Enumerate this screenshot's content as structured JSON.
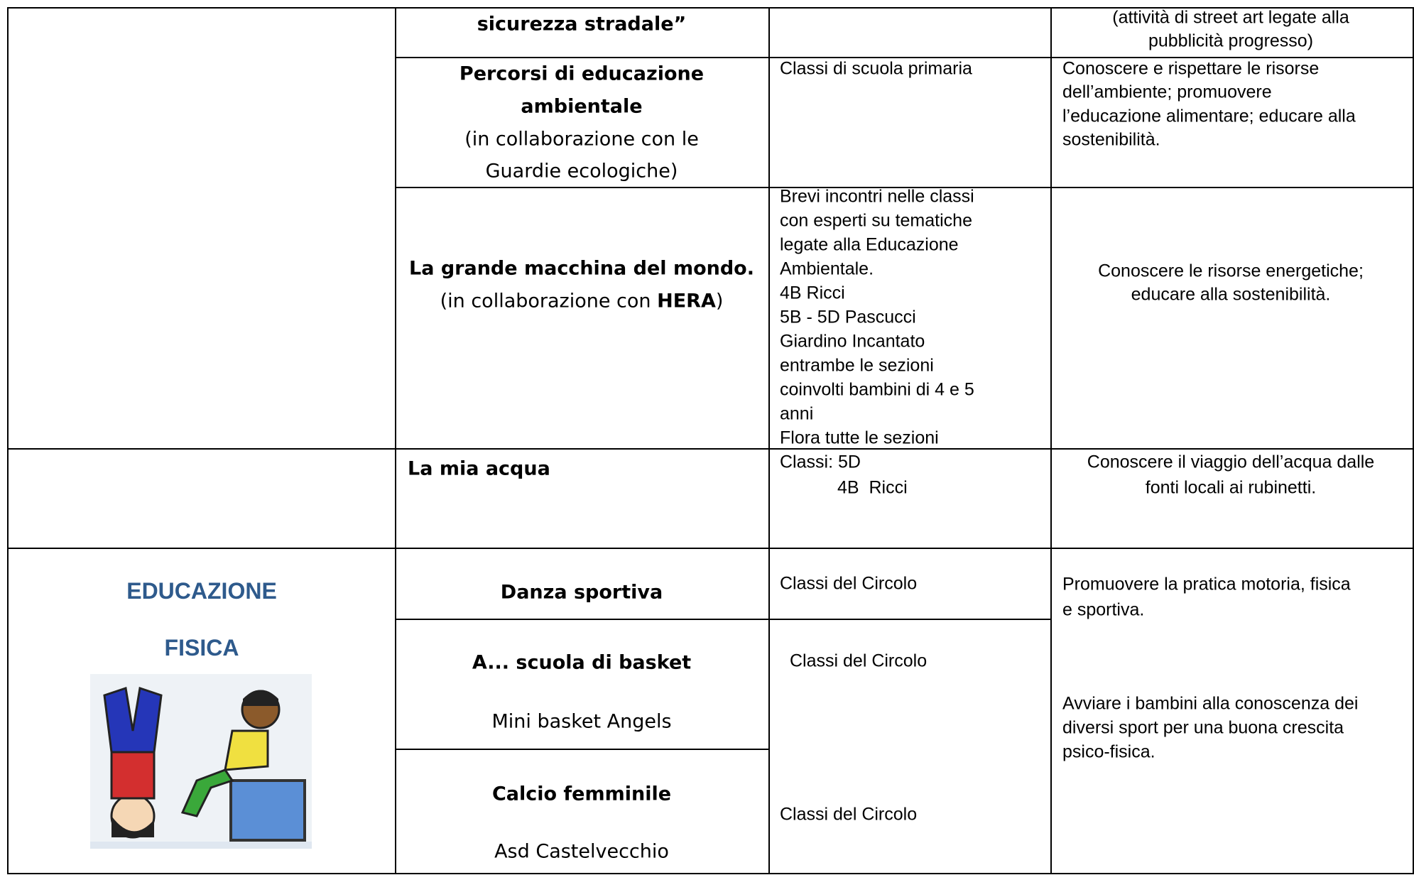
{
  "table": {
    "rows": [
      {
        "project": [
          "sicurezza stradale”"
        ],
        "classes": [],
        "goals": [
          "(attività di street art legate alla",
          "pubblicità progresso)"
        ]
      },
      {
        "project": [
          "Percorsi di educazione",
          "ambientale",
          "(in collaborazione con le",
          "Guardie ecologiche)"
        ],
        "classes": [
          "Classi di scuola primaria"
        ],
        "goals": [
          "Conoscere e rispettare le risorse",
          "dell’ambiente; promuovere",
          "l’educazione alimentare; educare alla",
          "sostenibilità."
        ]
      },
      {
        "project": [
          "La grande macchina del mondo.",
          "(in collaborazione con ",
          "HERA",
          ")"
        ],
        "classes": [
          "Brevi incontri nelle classi",
          "con esperti su tematiche",
          "legate alla Educazione",
          "Ambientale.",
          "4B Ricci",
          "5B - 5D Pascucci",
          "Giardino Incantato",
          "entrambe le sezioni",
          "coinvolti bambini di 4 e 5",
          "anni",
          "Flora tutte le sezioni"
        ],
        "goals": [
          "Conoscere le risorse energetiche;",
          "educare alla sostenibilità."
        ]
      },
      {
        "project": [
          "La mia acqua"
        ],
        "classes": [
          "Classi: 5D",
          "4B  Ricci"
        ],
        "goals": [
          "Conoscere il viaggio dell’acqua dalle",
          "fonti locali ai rubinetti."
        ]
      },
      {
        "area": [
          "EDUCAZIONE",
          "FISICA"
        ],
        "project": [
          "Danza sportiva",
          "A... scuola di basket",
          "Mini basket Angels",
          "Calcio femminile",
          "Asd Castelvecchio"
        ],
        "classes": [
          "Classi del Circolo",
          "Classi del Circolo",
          "Classi del Circolo"
        ],
        "goals": [
          "Promuovere la pratica motoria, fisica",
          "e sportiva.",
          "Avviare i bambini alla conoscenza dei",
          "diversi sport per una buona crescita",
          "psico-fisica."
        ]
      }
    ]
  }
}
